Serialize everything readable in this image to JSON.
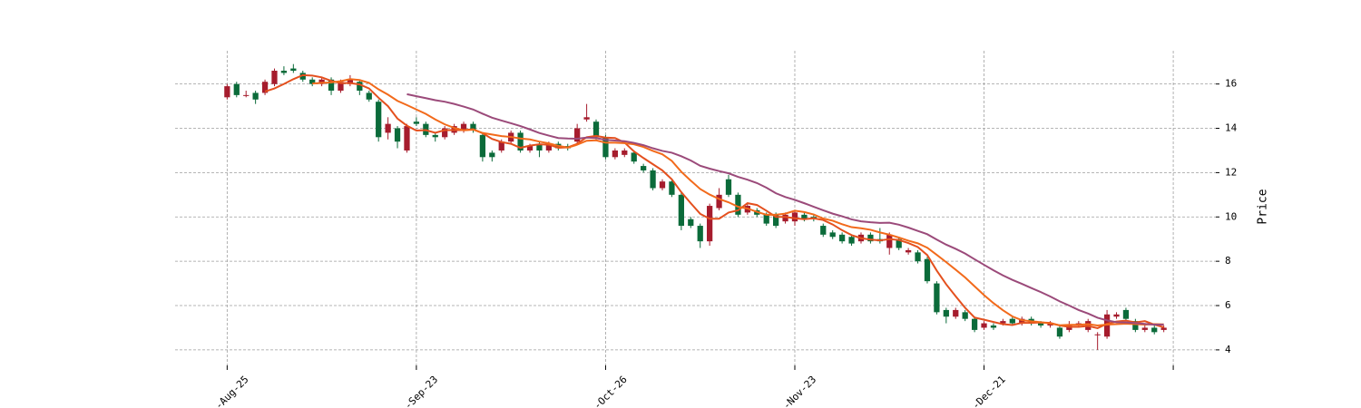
{
  "chart_data": {
    "type": "candlestick",
    "ylabel": "Price",
    "xlim": [
      -5.5,
      104.5
    ],
    "xticks": [
      {
        "value": 0,
        "label": "-Aug-25"
      },
      {
        "value": 20,
        "label": "-Sep-23"
      },
      {
        "value": 40,
        "label": "-Oct-26"
      },
      {
        "value": 60,
        "label": "-Nov-23"
      },
      {
        "value": 80,
        "label": "-Dec-21"
      },
      {
        "value": 100,
        "label": null
      }
    ],
    "ylim": [
      3.3,
      17.5
    ],
    "yticks": [
      4,
      6,
      8,
      10,
      12,
      14,
      16
    ],
    "grid": true,
    "up_color": "#a61c2d",
    "down_color": "#0b6b3a",
    "open": [
      15.4,
      16.0,
      15.5,
      15.6,
      15.6,
      16.0,
      16.6,
      16.7,
      16.5,
      16.2,
      16.0,
      16.2,
      15.7,
      16.0,
      16.1,
      15.6,
      15.2,
      13.8,
      14.0,
      13.0,
      14.3,
      14.2,
      13.7,
      13.6,
      13.8,
      13.9,
      14.2,
      13.7,
      12.9,
      13.0,
      13.4,
      13.8,
      13.0,
      13.3,
      13.0,
      13.3,
      13.2,
      13.4,
      14.4,
      14.3,
      13.6,
      12.7,
      12.8,
      12.9,
      12.3,
      12.1,
      11.3,
      11.6,
      11.0,
      9.9,
      9.6,
      8.9,
      10.4,
      11.7,
      11.0,
      10.2,
      10.3,
      10.1,
      10.1,
      9.8,
      9.8,
      10.1,
      10.0,
      9.6,
      9.3,
      9.2,
      9.1,
      8.9,
      9.2,
      9.0,
      8.6,
      9.0,
      8.4,
      8.4,
      8.1,
      7.0,
      5.8,
      5.5,
      5.7,
      5.4,
      5.0,
      5.1,
      5.2,
      5.4,
      5.2,
      5.4,
      5.2,
      5.1,
      5.0,
      4.9,
      5.1,
      4.9,
      4.7,
      4.6,
      5.5,
      5.8,
      5.3,
      4.9,
      5.0,
      4.9
    ],
    "high": [
      16.0,
      16.1,
      15.7,
      15.7,
      16.2,
      16.7,
      16.8,
      16.9,
      16.6,
      16.3,
      16.3,
      16.3,
      16.2,
      16.4,
      16.2,
      15.7,
      15.3,
      14.5,
      14.1,
      14.2,
      14.5,
      14.3,
      13.8,
      14.1,
      14.2,
      14.3,
      14.3,
      13.8,
      13.0,
      13.5,
      13.9,
      13.9,
      13.3,
      13.4,
      13.4,
      13.4,
      13.3,
      14.2,
      15.1,
      14.4,
      13.7,
      13.1,
      13.1,
      13.0,
      12.4,
      12.2,
      11.7,
      11.7,
      11.1,
      10.0,
      9.7,
      10.6,
      11.3,
      11.9,
      11.1,
      10.6,
      10.4,
      10.2,
      10.2,
      10.2,
      10.3,
      10.2,
      10.1,
      9.7,
      9.4,
      9.3,
      9.2,
      9.3,
      9.3,
      9.5,
      9.3,
      9.1,
      8.6,
      8.5,
      8.2,
      7.1,
      5.9,
      5.9,
      5.8,
      5.5,
      5.3,
      5.2,
      5.4,
      5.5,
      5.5,
      5.5,
      5.3,
      5.3,
      5.1,
      5.3,
      5.3,
      5.4,
      4.8,
      5.8,
      5.7,
      5.9,
      5.4,
      5.1,
      5.1,
      5.1
    ],
    "low": [
      15.3,
      15.4,
      15.4,
      15.1,
      15.5,
      15.9,
      16.4,
      16.5,
      16.1,
      15.9,
      15.9,
      15.5,
      15.6,
      15.9,
      15.5,
      15.2,
      13.4,
      13.5,
      13.1,
      12.9,
      14.1,
      13.6,
      13.4,
      13.5,
      13.7,
      13.8,
      13.8,
      12.5,
      12.5,
      12.9,
      13.3,
      12.9,
      12.9,
      12.7,
      12.9,
      13.0,
      13.0,
      13.3,
      14.3,
      13.5,
      12.6,
      12.6,
      12.7,
      12.4,
      12.0,
      11.2,
      11.2,
      10.9,
      9.4,
      9.5,
      8.6,
      8.7,
      10.3,
      10.9,
      10.0,
      10.1,
      10.0,
      9.6,
      9.5,
      9.7,
      9.6,
      9.8,
      9.8,
      9.1,
      9.0,
      8.8,
      8.7,
      8.8,
      8.8,
      8.8,
      8.3,
      8.5,
      8.3,
      7.9,
      7.0,
      5.6,
      5.2,
      5.4,
      5.3,
      4.8,
      4.9,
      4.9,
      5.1,
      5.1,
      5.1,
      5.1,
      5.0,
      5.0,
      4.5,
      4.8,
      5.0,
      4.8,
      4.0,
      4.5,
      5.4,
      5.3,
      4.8,
      4.8,
      4.7,
      4.8
    ],
    "close": [
      15.9,
      15.5,
      15.5,
      15.3,
      16.1,
      16.6,
      16.5,
      16.6,
      16.2,
      16.0,
      16.2,
      15.7,
      16.1,
      16.2,
      15.7,
      15.3,
      13.6,
      14.2,
      13.4,
      14.1,
      14.2,
      13.7,
      13.6,
      14.0,
      14.1,
      14.2,
      13.9,
      12.7,
      12.7,
      13.4,
      13.8,
      13.0,
      13.2,
      13.0,
      13.3,
      13.1,
      13.1,
      14.0,
      14.5,
      13.6,
      12.7,
      13.0,
      13.0,
      12.5,
      12.1,
      11.3,
      11.6,
      11.0,
      9.6,
      9.6,
      8.9,
      10.5,
      11.0,
      11.0,
      10.1,
      10.5,
      10.1,
      9.7,
      9.6,
      10.1,
      10.2,
      9.9,
      9.9,
      9.2,
      9.1,
      8.9,
      8.8,
      9.2,
      8.9,
      8.9,
      9.2,
      8.6,
      8.5,
      8.0,
      7.1,
      5.7,
      5.5,
      5.8,
      5.4,
      4.9,
      5.2,
      5.0,
      5.3,
      5.2,
      5.4,
      5.2,
      5.1,
      5.2,
      4.6,
      5.1,
      5.2,
      5.3,
      4.7,
      5.6,
      5.6,
      5.4,
      4.9,
      5.0,
      4.8,
      5.0
    ],
    "series": [
      {
        "color": "#e4501e",
        "values": [
          null,
          null,
          null,
          null,
          15.66,
          15.8,
          16.0,
          16.22,
          16.4,
          16.38,
          16.3,
          16.14,
          16.04,
          16.04,
          15.98,
          15.8,
          15.38,
          15.0,
          14.44,
          14.12,
          13.9,
          13.92,
          13.8,
          13.92,
          13.92,
          13.92,
          13.96,
          13.78,
          13.52,
          13.38,
          13.3,
          13.12,
          13.22,
          13.28,
          13.26,
          13.12,
          13.14,
          13.3,
          13.6,
          13.66,
          13.58,
          13.56,
          13.36,
          12.96,
          12.66,
          12.38,
          12.1,
          11.7,
          11.12,
          10.62,
          10.14,
          9.92,
          9.92,
          10.2,
          10.3,
          10.62,
          10.54,
          10.28,
          10.0,
          10.0,
          9.94,
          9.9,
          9.94,
          9.86,
          9.66,
          9.4,
          9.18,
          9.04,
          8.98,
          8.94,
          9.0,
          8.96,
          8.82,
          8.64,
          8.28,
          7.58,
          6.96,
          6.42,
          5.9,
          5.46,
          5.36,
          5.26,
          5.16,
          5.12,
          5.22,
          5.22,
          5.24,
          5.22,
          5.1,
          5.04,
          5.04,
          5.08,
          4.98,
          5.18,
          5.28,
          5.32,
          5.24,
          5.3,
          5.14,
          5.02
        ]
      },
      {
        "color": "#f26a1b",
        "values": [
          null,
          null,
          null,
          null,
          null,
          null,
          null,
          null,
          null,
          16.02,
          16.05,
          16.07,
          16.13,
          16.22,
          16.18,
          16.05,
          15.76,
          15.52,
          15.24,
          15.05,
          14.85,
          14.65,
          14.4,
          14.18,
          14.02,
          13.91,
          13.94,
          13.79,
          13.72,
          13.65,
          13.61,
          13.54,
          13.5,
          13.4,
          13.32,
          13.21,
          13.13,
          13.26,
          13.44,
          13.46,
          13.35,
          13.35,
          13.33,
          13.28,
          13.16,
          12.98,
          12.83,
          12.53,
          12.04,
          11.64,
          11.26,
          11.01,
          10.81,
          10.66,
          10.46,
          10.38,
          10.23,
          10.1,
          10.1,
          10.15,
          10.28,
          10.22,
          10.11,
          9.93,
          9.83,
          9.67,
          9.54,
          9.49,
          9.42,
          9.3,
          9.2,
          9.07,
          8.93,
          8.81,
          8.61,
          8.29,
          7.96,
          7.62,
          7.27,
          6.87,
          6.47,
          6.11,
          5.79,
          5.51,
          5.34,
          5.29,
          5.25,
          5.19,
          5.11,
          5.13,
          5.13,
          5.16,
          5.1,
          5.14,
          5.16,
          5.18,
          5.16,
          5.14,
          5.16,
          5.15
        ]
      },
      {
        "color": "#9b4a7a",
        "values": [
          null,
          null,
          null,
          null,
          null,
          null,
          null,
          null,
          null,
          null,
          null,
          null,
          null,
          null,
          null,
          null,
          null,
          null,
          null,
          15.54,
          15.45,
          15.36,
          15.27,
          15.2,
          15.1,
          14.98,
          14.85,
          14.66,
          14.48,
          14.35,
          14.23,
          14.1,
          13.95,
          13.79,
          13.67,
          13.56,
          13.54,
          13.53,
          13.58,
          13.56,
          13.48,
          13.45,
          13.42,
          13.34,
          13.24,
          13.1,
          12.98,
          12.9,
          12.74,
          12.55,
          12.31,
          12.18,
          12.07,
          11.97,
          11.81,
          11.68,
          11.53,
          11.32,
          11.07,
          10.9,
          10.77,
          10.62,
          10.46,
          10.3,
          10.15,
          10.03,
          9.89,
          9.8,
          9.76,
          9.73,
          9.74,
          9.65,
          9.52,
          9.37,
          9.22,
          8.98,
          8.75,
          8.56,
          8.35,
          8.09,
          7.84,
          7.59,
          7.36,
          7.16,
          6.98,
          6.79,
          6.61,
          6.41,
          6.19,
          6.0,
          5.8,
          5.64,
          5.45,
          5.33,
          5.25,
          5.24,
          5.21,
          5.17,
          5.14,
          5.14
        ]
      }
    ]
  }
}
